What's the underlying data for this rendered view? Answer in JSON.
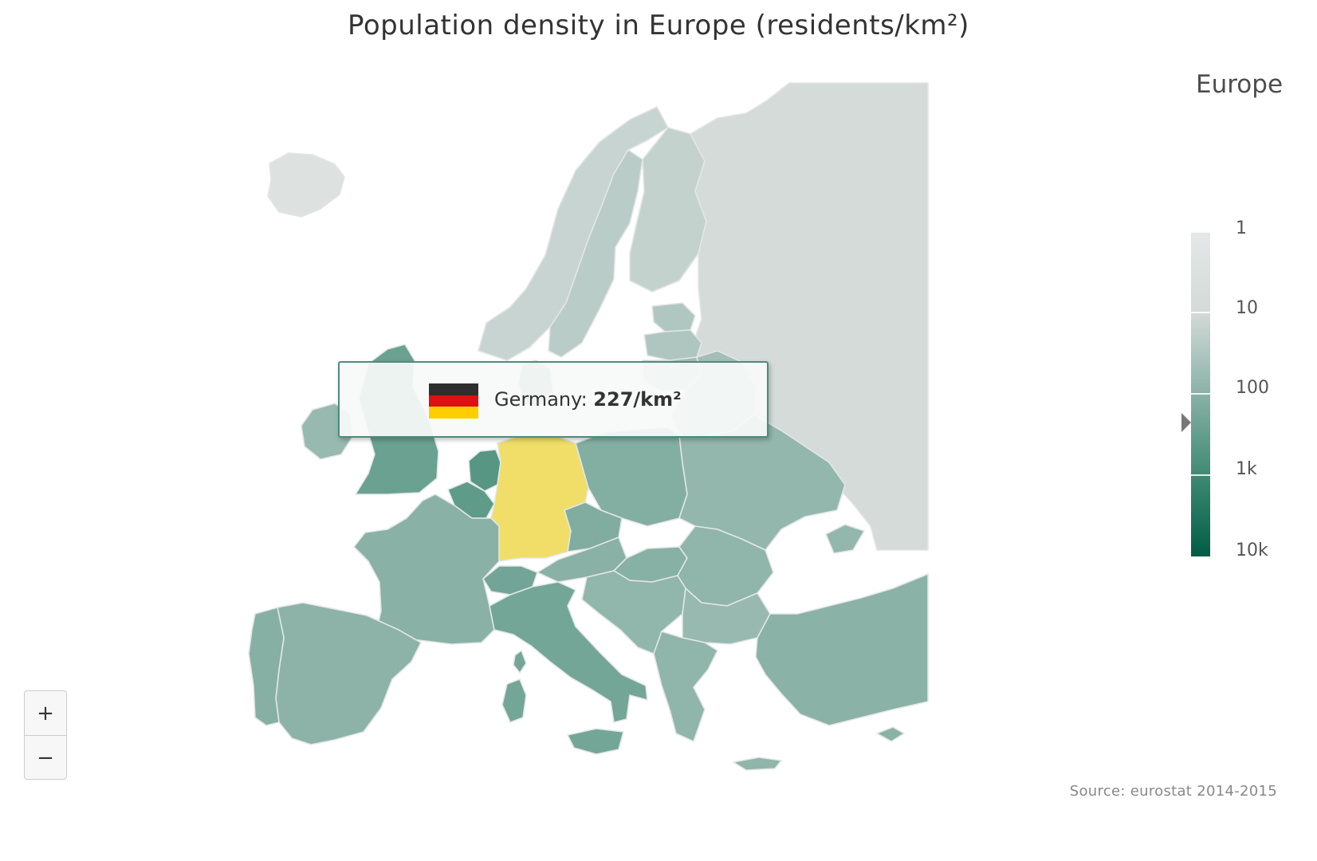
{
  "title": "Population density in Europe (residents/km²)",
  "legend": {
    "title": "Europe",
    "labels": [
      "1",
      "10",
      "100",
      "1k",
      "10k"
    ],
    "colors": [
      "#e6e7e8",
      "#d3dad8",
      "#8ab2a7",
      "#3f8a73",
      "#005c45"
    ],
    "marker_value": 227
  },
  "tooltip": {
    "country": "Germany:",
    "value": "227/km²",
    "flag_colors": [
      "#2e2e2e",
      "#dd1111",
      "#ffce00"
    ]
  },
  "highlight_color": "#f0de68",
  "zoom": {
    "in_label": "+",
    "out_label": "−"
  },
  "source": "Source: eurostat 2014-2015",
  "map_data": [
    {
      "name": "Iceland",
      "density": 3
    },
    {
      "name": "Norway",
      "density": 14
    },
    {
      "name": "Sweden",
      "density": 22
    },
    {
      "name": "Finland",
      "density": 16
    },
    {
      "name": "Russia",
      "density": 9
    },
    {
      "name": "Estonia",
      "density": 30
    },
    {
      "name": "Latvia",
      "density": 31
    },
    {
      "name": "Lithuania",
      "density": 46
    },
    {
      "name": "Belarus",
      "density": 46
    },
    {
      "name": "Denmark",
      "density": 131
    },
    {
      "name": "United Kingdom",
      "density": 267
    },
    {
      "name": "Ireland",
      "density": 67
    },
    {
      "name": "Netherlands",
      "density": 500
    },
    {
      "name": "Belgium",
      "density": 370
    },
    {
      "name": "Germany",
      "density": 227
    },
    {
      "name": "Poland",
      "density": 123
    },
    {
      "name": "Czech Republic",
      "density": 136
    },
    {
      "name": "Ukraine",
      "density": 75
    },
    {
      "name": "France",
      "density": 104
    },
    {
      "name": "Switzerland",
      "density": 207
    },
    {
      "name": "Austria",
      "density": 104
    },
    {
      "name": "Italy",
      "density": 201
    },
    {
      "name": "Spain",
      "density": 92
    },
    {
      "name": "Portugal",
      "density": 112
    },
    {
      "name": "Hungary",
      "density": 106
    },
    {
      "name": "Romania",
      "density": 83
    },
    {
      "name": "Bulgaria",
      "density": 65
    },
    {
      "name": "Greece",
      "density": 82
    },
    {
      "name": "Turkey",
      "density": 101
    }
  ]
}
